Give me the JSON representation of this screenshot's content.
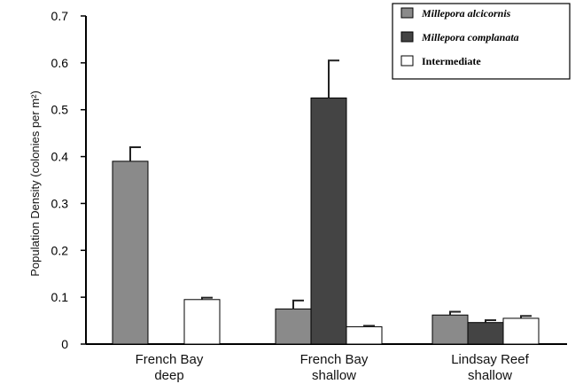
{
  "chart_data": {
    "type": "bar",
    "ylabel": "Population Density (colonies per m²)",
    "ylim": [
      0,
      0.7
    ],
    "yticks": [
      "0",
      "0.1",
      "0.2",
      "0.3",
      "0.4",
      "0.5",
      "0.6",
      "0.7"
    ],
    "categories": [
      {
        "line1": "French Bay",
        "line2": "deep"
      },
      {
        "line1": "French Bay",
        "line2": "shallow"
      },
      {
        "line1": "Lindsay Reef",
        "line2": "shallow"
      }
    ],
    "legend_position": "top-right",
    "series": [
      {
        "name": "Millepora alcicornis",
        "italic": true,
        "color": "#8a8a8a",
        "values": [
          0.39,
          0.075,
          0.062
        ],
        "errors": [
          0.03,
          0.018,
          0.007
        ]
      },
      {
        "name": "Millepora complanata",
        "italic": true,
        "color": "#444444",
        "values": [
          0.0,
          0.525,
          0.046
        ],
        "errors": [
          0.0,
          0.08,
          0.005
        ]
      },
      {
        "name": "Intermediate",
        "italic": false,
        "color": "#ffffff",
        "values": [
          0.095,
          0.037,
          0.055
        ],
        "errors": [
          0.004,
          0.002,
          0.005
        ]
      }
    ]
  }
}
